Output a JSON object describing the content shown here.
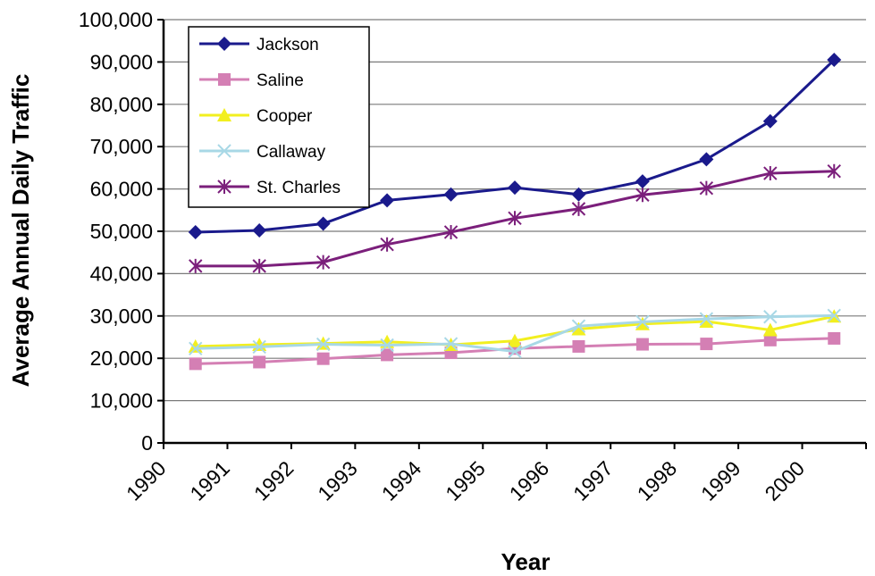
{
  "chart_data": {
    "type": "line",
    "title": "",
    "xlabel": "Year",
    "ylabel": "Average Annual Daily Traffic",
    "categories": [
      "1990",
      "1991",
      "1992",
      "1993",
      "1994",
      "1995",
      "1996",
      "1997",
      "1998",
      "1999",
      "2000"
    ],
    "ylim": [
      0,
      100000
    ],
    "yticks": [
      0,
      10000,
      20000,
      30000,
      40000,
      50000,
      60000,
      70000,
      80000,
      90000,
      100000
    ],
    "ytick_labels": [
      "0",
      "10,000",
      "20,000",
      "30,000",
      "40,000",
      "50,000",
      "60,000",
      "70,000",
      "80,000",
      "90,000",
      "100,000"
    ],
    "grid": true,
    "legend_position": "top-left",
    "series": [
      {
        "name": "Jackson",
        "color": "#1a1a8c",
        "marker": "diamond",
        "values": [
          49800,
          50200,
          51800,
          57300,
          58700,
          60300,
          58700,
          61800,
          67000,
          76000,
          90500
        ]
      },
      {
        "name": "Saline",
        "color": "#d47fb4",
        "marker": "square",
        "values": [
          18700,
          19100,
          19900,
          20800,
          21300,
          22300,
          22800,
          23300,
          23400,
          24300,
          24700
        ]
      },
      {
        "name": "Cooper",
        "color": "#f2ef1f",
        "marker": "triangle",
        "values": [
          22800,
          23200,
          23500,
          23900,
          23200,
          24100,
          26900,
          28100,
          28700,
          26700,
          29900
        ]
      },
      {
        "name": "Callaway",
        "color": "#a8d8e6",
        "marker": "x",
        "values": [
          22300,
          22700,
          23300,
          23100,
          23400,
          21600,
          27600,
          28600,
          29300,
          29800,
          30100
        ]
      },
      {
        "name": "St. Charles",
        "color": "#7b1f7b",
        "marker": "asterisk",
        "values": [
          41800,
          41800,
          42700,
          46900,
          49800,
          53100,
          55300,
          58600,
          60200,
          63700,
          64200
        ]
      }
    ]
  }
}
